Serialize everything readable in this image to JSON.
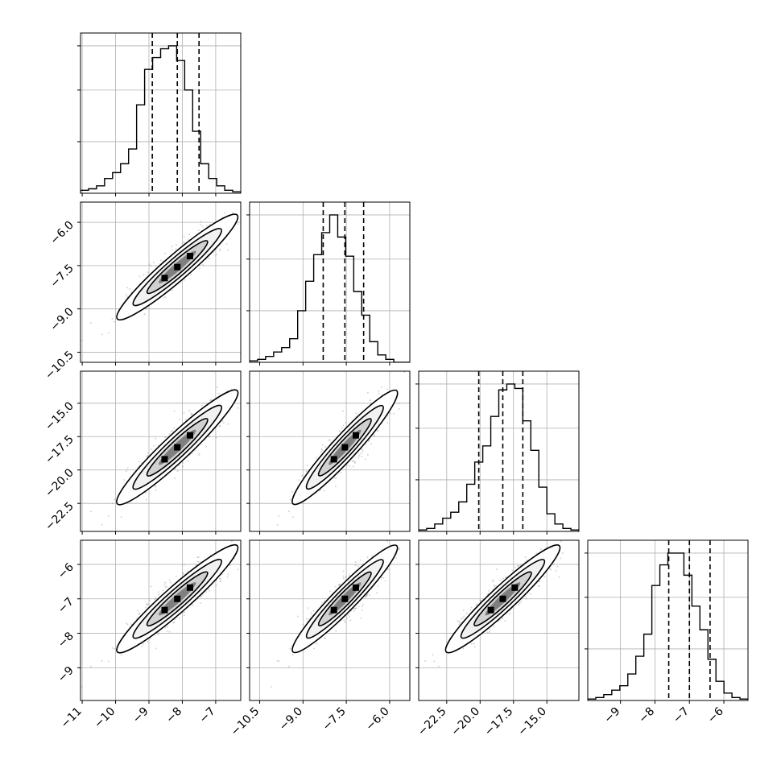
{
  "chart_data": {
    "type": "corner",
    "parameters": [
      {
        "xticks": [
          -11,
          -10,
          -9,
          -8,
          -7
        ],
        "xtick_labels": [
          "−11",
          "−10",
          "−9",
          "−8",
          "−7"
        ],
        "yticks": [],
        "ytick_labels": [],
        "range": [
          -11.05,
          -6.25
        ],
        "quantiles": [
          -8.9,
          -8.15,
          -7.5
        ],
        "hist": [
          0.02,
          0.03,
          0.05,
          0.1,
          0.14,
          0.2,
          0.3,
          0.6,
          0.84,
          0.92,
          0.98,
          1.0,
          0.9,
          0.7,
          0.42,
          0.2,
          0.1,
          0.05,
          0.02,
          0.01
        ]
      },
      {
        "xticks": [
          -10.5,
          -9.0,
          -7.5,
          -6.0
        ],
        "xtick_labels": [
          "−10.5",
          "−9.0",
          "−7.5",
          "−6.0"
        ],
        "yticks": [
          -6.0,
          -7.5,
          -9.0,
          -10.5
        ],
        "ytick_labels": [
          "−6.0",
          "−7.5",
          "−9.0",
          "−10.5"
        ],
        "range": [
          -10.85,
          -5.3
        ],
        "quantiles": [
          -8.3,
          -7.55,
          -6.9
        ],
        "hist": [
          0.01,
          0.02,
          0.04,
          0.07,
          0.1,
          0.16,
          0.35,
          0.55,
          0.73,
          0.88,
          1.0,
          0.85,
          0.72,
          0.48,
          0.32,
          0.14,
          0.05,
          0.02,
          0.0,
          0.0
        ]
      },
      {
        "xticks": [
          -22.5,
          -20.0,
          -17.5,
          -15.0
        ],
        "xtick_labels": [
          "−22.5",
          "−20.0",
          "−17.5",
          "−15.0"
        ],
        "yticks": [
          -15.0,
          -17.5,
          -20.0,
          -22.5
        ],
        "ytick_labels": [
          "−15.0",
          "−17.5",
          "−20.0",
          "−22.5"
        ],
        "range": [
          -24.6,
          -12.6
        ],
        "quantiles": [
          -20.1,
          -18.3,
          -16.8
        ],
        "hist": [
          0.01,
          0.02,
          0.05,
          0.09,
          0.13,
          0.2,
          0.32,
          0.47,
          0.58,
          0.78,
          0.96,
          1.0,
          0.97,
          0.75,
          0.55,
          0.3,
          0.12,
          0.05,
          0.02,
          0.01
        ]
      },
      {
        "xticks": [
          -9,
          -8,
          -7,
          -6
        ],
        "xtick_labels": [
          "−9",
          "−8",
          "−7",
          "−6"
        ],
        "yticks": [
          -6,
          -7,
          -8,
          -9
        ],
        "ytick_labels": [
          "−6",
          "−7",
          "−8",
          "−9"
        ],
        "range": [
          -9.95,
          -5.3
        ],
        "quantiles": [
          -7.6,
          -7.0,
          -6.4
        ],
        "hist": [
          0.01,
          0.02,
          0.04,
          0.07,
          0.1,
          0.18,
          0.3,
          0.45,
          0.78,
          0.92,
          1.0,
          1.0,
          0.85,
          0.64,
          0.48,
          0.28,
          0.13,
          0.05,
          0.02,
          0.01
        ]
      }
    ],
    "quantile_lines": [
      0.16,
      0.5,
      0.84
    ],
    "density_levels": [
      0.39,
      0.86,
      0.99
    ],
    "correlation": 0.95,
    "scatter_samples": 900,
    "grid": true,
    "colors": {
      "line": "#000000",
      "scatter": "#888888",
      "grid": "#b0b0b0"
    }
  }
}
